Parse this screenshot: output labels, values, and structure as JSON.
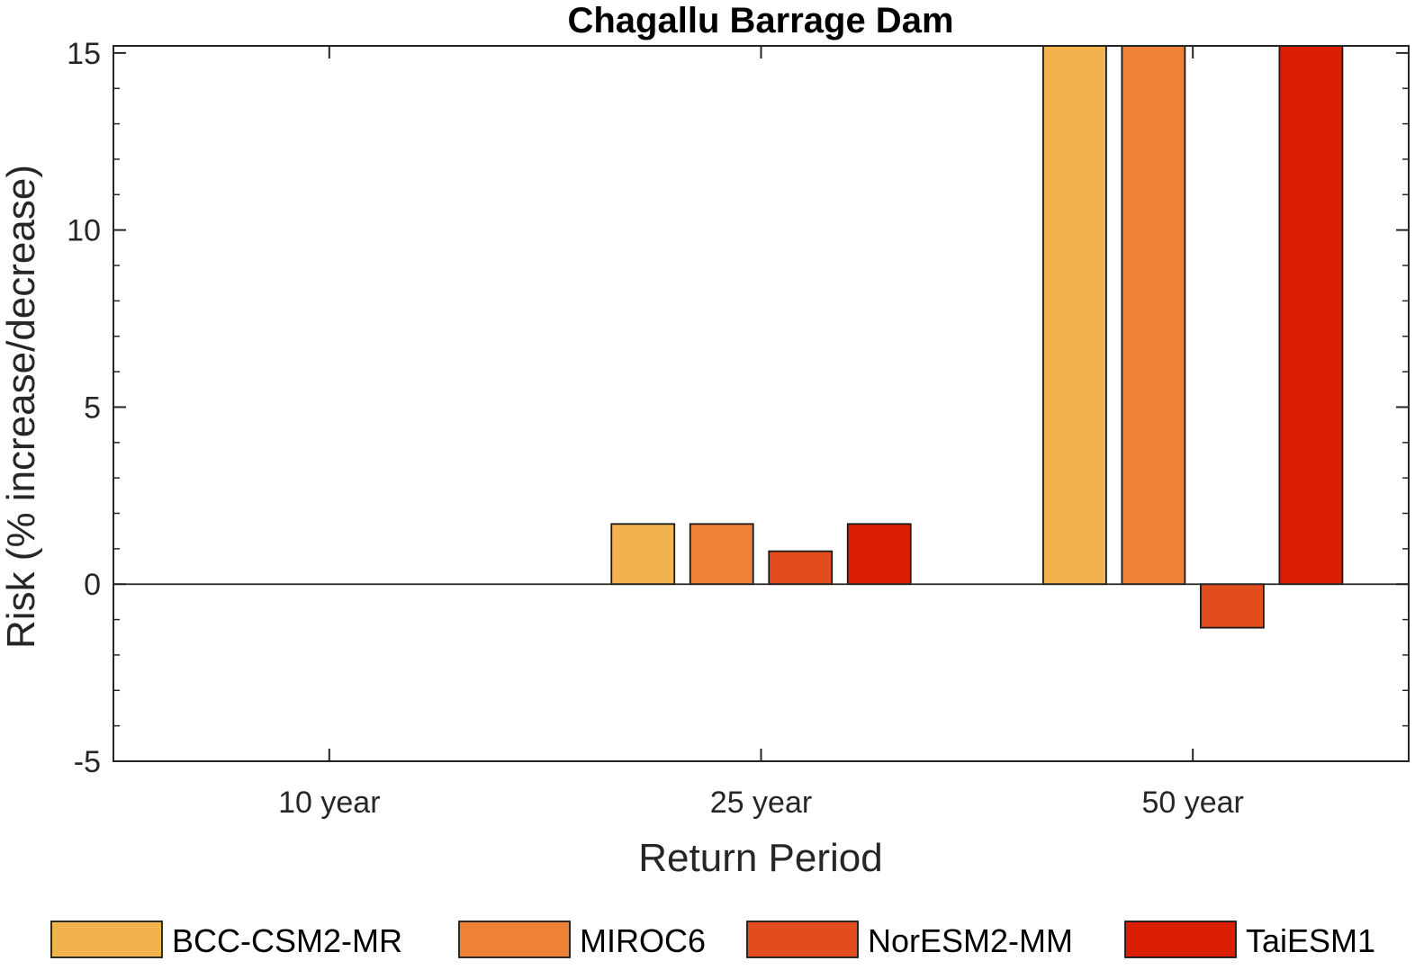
{
  "chart_data": {
    "type": "bar",
    "title": "Chagallu Barrage Dam",
    "xlabel": "Return Period",
    "ylabel": "Risk (% increase/decrease)",
    "categories": [
      "10 year",
      "25 year",
      "50 year"
    ],
    "ylim": [
      -5,
      15.2
    ],
    "yticks": [
      -5,
      0,
      5,
      10,
      15
    ],
    "grid": false,
    "legend_position": "bottom",
    "series": [
      {
        "name": "BCC-CSM2-MR",
        "color": "#F2B24E",
        "values": [
          0,
          1.7,
          15.2
        ]
      },
      {
        "name": "MIROC6",
        "color": "#ED8135",
        "values": [
          0,
          1.7,
          15.2
        ]
      },
      {
        "name": "NorESM2-MM",
        "color": "#E14D1C",
        "values": [
          0,
          0.93,
          -1.23
        ]
      },
      {
        "name": "TaiESM1",
        "color": "#DC1F03",
        "values": [
          0,
          1.7,
          15.2
        ]
      }
    ]
  }
}
